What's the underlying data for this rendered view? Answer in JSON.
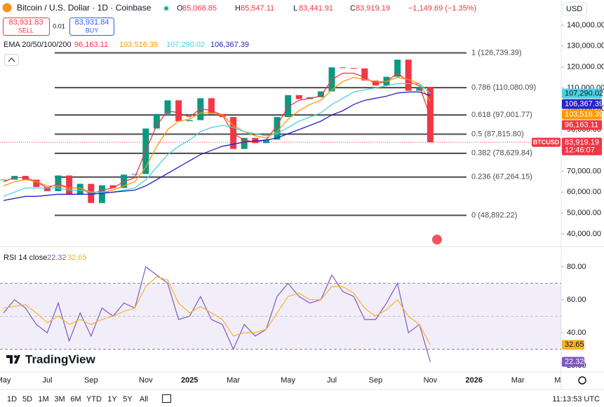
{
  "header": {
    "title": "Bitcoin / U.S. Dollar · 1D · Coinbase",
    "ohlc": [
      [
        "O",
        "85,068.85"
      ],
      [
        "H",
        "85,547.11"
      ],
      [
        "L",
        "83,441.91"
      ],
      [
        "C",
        "83,919.19"
      ]
    ],
    "change": "−1,149.69 (−1.35%)",
    "sell": {
      "price": "83,931.83",
      "label": "SELL"
    },
    "spread": "0.01",
    "buy": {
      "price": "83,931.84",
      "label": "BUY"
    },
    "currency": "USD"
  },
  "chart_data": [
    {
      "type": "candlestick",
      "legend_title": "EMA 20/50/100/200",
      "countdown": "12:46:07",
      "categories": [
        "May",
        null,
        null,
        null,
        "Jul",
        null,
        null,
        null,
        "Sep",
        null,
        null,
        null,
        null,
        "Nov",
        null,
        null,
        null,
        "2025",
        null,
        null,
        null,
        "Mar",
        null,
        null,
        null,
        null,
        "May",
        null,
        null,
        null,
        "Jul",
        null,
        null,
        null,
        "Sep",
        null,
        null,
        null,
        null,
        "Nov",
        null,
        null,
        null,
        "2026",
        null,
        null,
        null,
        "Mar",
        null,
        null,
        null,
        "May"
      ],
      "series": [
        {
          "name": "BTCUSD",
          "color": "#f23645",
          "up_color": "#089981",
          "values": [
            66000,
            67800,
            66000,
            62500,
            60500,
            68000,
            59000,
            64000,
            54800,
            63300,
            62000,
            68400,
            68700,
            90500,
            97500,
            104000,
            94000,
            94500,
            105000,
            97500,
            96000,
            80700,
            86000,
            83500,
            85200,
            96000,
            106500,
            104600,
            105500,
            108300,
            119800,
            119500,
            119300,
            113500,
            111100,
            115300,
            123500,
            108600,
            110500,
            83919.19,
            null,
            null,
            null,
            null,
            null,
            null,
            null,
            null,
            null,
            null,
            null,
            null
          ],
          "value_labels": [
            null,
            null,
            null,
            null,
            null,
            null,
            null,
            null,
            null,
            null,
            null,
            null,
            null,
            null,
            null,
            null,
            null,
            null,
            null,
            null,
            null,
            null,
            null,
            null,
            null,
            null,
            null,
            null,
            null,
            null,
            null,
            null,
            null,
            null,
            null,
            null,
            null,
            null,
            null,
            "83,919.19",
            null,
            null,
            null,
            null,
            null,
            null,
            null,
            null,
            null,
            null,
            null,
            null
          ]
        },
        {
          "color": "#f23645",
          "values": [
            65000,
            67000,
            67000,
            65000,
            62000,
            64000,
            62000,
            62000,
            59000,
            61000,
            62000,
            65000,
            67000,
            80000,
            92000,
            99000,
            98000,
            96000,
            100000,
            99000,
            97000,
            88000,
            85000,
            84000,
            85000,
            92000,
            101000,
            104000,
            105000,
            106000,
            114000,
            117000,
            117000,
            115000,
            112000,
            113000,
            117000,
            113000,
            111000,
            96163.11,
            null,
            null,
            null,
            null,
            null,
            null,
            null,
            null,
            null,
            null,
            null,
            null
          ],
          "value_labels": [
            null,
            null,
            null,
            null,
            null,
            null,
            null,
            null,
            null,
            null,
            null,
            null,
            null,
            null,
            null,
            null,
            null,
            null,
            null,
            null,
            null,
            null,
            null,
            null,
            null,
            null,
            null,
            null,
            null,
            null,
            null,
            null,
            null,
            null,
            null,
            null,
            null,
            null,
            null,
            "96,163.11",
            null,
            null,
            null,
            null,
            null,
            null,
            null,
            null,
            null,
            null,
            null,
            null
          ]
        },
        {
          "color": "#ff9800",
          "values": [
            63000,
            65000,
            66000,
            65000,
            63000,
            63000,
            62000,
            62000,
            60000,
            60000,
            61000,
            63000,
            65000,
            72000,
            82000,
            90000,
            94000,
            95000,
            98000,
            98000,
            97000,
            92000,
            89000,
            87000,
            86000,
            89000,
            95000,
            99000,
            102000,
            104000,
            109000,
            113000,
            115000,
            114000,
            113000,
            113000,
            115000,
            114000,
            112000,
            103516.39,
            null,
            null,
            null,
            null,
            null,
            null,
            null,
            null,
            null,
            null,
            null,
            null
          ],
          "value_labels": [
            null,
            null,
            null,
            null,
            null,
            null,
            null,
            null,
            null,
            null,
            null,
            null,
            null,
            null,
            null,
            null,
            null,
            null,
            null,
            null,
            null,
            null,
            null,
            null,
            null,
            null,
            null,
            null,
            null,
            null,
            null,
            null,
            null,
            null,
            null,
            null,
            null,
            null,
            null,
            "103,516.39",
            null,
            null,
            null,
            null,
            null,
            null,
            null,
            null,
            null,
            null,
            null,
            null
          ]
        },
        {
          "color": "#4dd0e1",
          "values": [
            58000,
            60000,
            62000,
            62000,
            62000,
            62000,
            61000,
            61000,
            60000,
            60000,
            60000,
            61000,
            62000,
            66000,
            72000,
            78000,
            82000,
            85000,
            89000,
            91000,
            92000,
            91000,
            89000,
            88000,
            87000,
            88000,
            91000,
            94000,
            96000,
            98000,
            102000,
            105000,
            108000,
            109000,
            110000,
            111000,
            112000,
            112000,
            112000,
            107290.02,
            null,
            null,
            null,
            null,
            null,
            null,
            null,
            null,
            null,
            null,
            null,
            null
          ],
          "value_labels": [
            null,
            null,
            null,
            null,
            null,
            null,
            null,
            null,
            null,
            null,
            null,
            null,
            null,
            null,
            null,
            null,
            null,
            null,
            null,
            null,
            null,
            null,
            null,
            null,
            null,
            null,
            null,
            null,
            null,
            null,
            null,
            null,
            null,
            null,
            null,
            null,
            null,
            null,
            null,
            "107,290.02",
            null,
            null,
            null,
            null,
            null,
            null,
            null,
            null,
            null,
            null,
            null,
            null
          ]
        },
        {
          "color": "#2424c8",
          "values": [
            56000,
            57000,
            58000,
            58000,
            58500,
            59000,
            59000,
            59000,
            59000,
            59500,
            60000,
            60500,
            61000,
            63000,
            66000,
            69000,
            72000,
            75000,
            78000,
            80000,
            82000,
            83000,
            84000,
            84500,
            85000,
            86000,
            88000,
            90000,
            92000,
            94000,
            97000,
            99000,
            102000,
            104000,
            105000,
            106000,
            107500,
            108000,
            108000,
            106367.39,
            null,
            null,
            null,
            null,
            null,
            null,
            null,
            null,
            null,
            null,
            null,
            null
          ],
          "value_labels": [
            null,
            null,
            null,
            null,
            null,
            null,
            null,
            null,
            null,
            null,
            null,
            null,
            null,
            null,
            null,
            null,
            null,
            null,
            null,
            null,
            null,
            null,
            null,
            null,
            null,
            null,
            null,
            null,
            null,
            null,
            null,
            null,
            null,
            null,
            null,
            null,
            null,
            null,
            null,
            "106,367.39",
            null,
            null,
            null,
            null,
            null,
            null,
            null,
            null,
            null,
            null,
            null,
            null
          ]
        }
      ],
      "ylim": [
        34600,
        144700
      ],
      "yticks": [
        {
          "value": 40000,
          "label": "40,000.00"
        },
        {
          "value": 50000,
          "label": "50,000.00"
        },
        {
          "value": 60000,
          "label": "60,000.00"
        },
        {
          "value": 70000,
          "label": "70,000.00"
        },
        {
          "value": 80000,
          "label": "80,000.00"
        },
        {
          "value": 90000,
          "label": "90,000.00"
        },
        {
          "value": 100000,
          "label": "100,000.00"
        },
        {
          "value": 110000,
          "label": "110,000.00"
        },
        {
          "value": 120000,
          "label": "120,000.00"
        },
        {
          "value": 130000,
          "label": "130,000.00"
        },
        {
          "value": 140000,
          "label": "140,000.00"
        }
      ],
      "fib_levels": [
        {
          "value": 126739.39,
          "label": "1 (126,739.39)"
        },
        {
          "value": 110080.09,
          "label": "0.786 (110,080.09)"
        },
        {
          "value": 97001.77,
          "label": "0.618 (97,001.77)"
        },
        {
          "value": 87815.8,
          "label": "0.5 (87,815.80)"
        },
        {
          "value": 78629.84,
          "label": "0.382 (78,629.84)"
        },
        {
          "value": 67264.15,
          "label": "0.236 (67,264.15)"
        },
        {
          "value": 48892.22,
          "label": "0 (48,892.22)"
        }
      ],
      "fib_color": "#4a4a4a",
      "grid": false
    },
    {
      "type": "line",
      "title": "RSI 14 close",
      "series": [
        {
          "color": "#7e57c2",
          "values": [
            52,
            60,
            55,
            45,
            40,
            58,
            35,
            52,
            38,
            55,
            50,
            58,
            55,
            80,
            75,
            70,
            48,
            50,
            62,
            48,
            45,
            30,
            45,
            38,
            42,
            62,
            70,
            62,
            58,
            60,
            75,
            65,
            62,
            48,
            48,
            58,
            70,
            40,
            45,
            22.32,
            null,
            null,
            null,
            null,
            null,
            null,
            null,
            null,
            null,
            null,
            null,
            null
          ]
        },
        {
          "color": "#f7b32b",
          "values": [
            55,
            56,
            57,
            52,
            46,
            50,
            45,
            48,
            45,
            48,
            50,
            53,
            55,
            68,
            74,
            72,
            58,
            52,
            56,
            52,
            48,
            38,
            40,
            40,
            42,
            52,
            62,
            64,
            60,
            60,
            68,
            68,
            64,
            55,
            50,
            54,
            60,
            50,
            45,
            32.65,
            null,
            null,
            null,
            null,
            null,
            null,
            null,
            null,
            null,
            null,
            null,
            null
          ]
        }
      ],
      "ylim": [
        16.6,
        91
      ],
      "yticks": [
        {
          "value": 20,
          "label": "20.00"
        },
        {
          "value": 40,
          "label": "40.00"
        },
        {
          "value": 60,
          "label": "60.00"
        },
        {
          "value": 80,
          "label": "80.00"
        }
      ],
      "bands": [
        30,
        50,
        70
      ],
      "band_color": "#7e57c2",
      "grid": false
    }
  ],
  "footer": {
    "logo": "TradingView",
    "ranges": [
      "1D",
      "5D",
      "1M",
      "3M",
      "6M",
      "YTD",
      "1Y",
      "5Y",
      "All"
    ],
    "clock": "11:13:53 UTC"
  }
}
